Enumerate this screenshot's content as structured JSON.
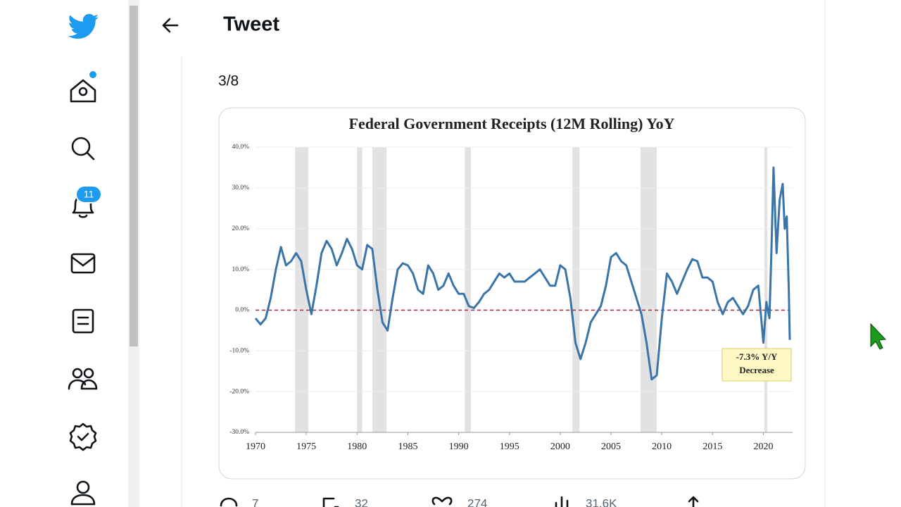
{
  "header": {
    "title": "Tweet"
  },
  "sidebar": {
    "notifications_badge": "11"
  },
  "tweet": {
    "text": "3/8",
    "actions": {
      "replies": "7",
      "retweets": "32",
      "likes": "274",
      "views": "31.6K"
    }
  },
  "chart_data": {
    "type": "line",
    "title": "Federal Government Receipts (12M Rolling) YoY",
    "color": "#3a74a8",
    "x": [
      1970,
      1970.5,
      1971,
      1971.5,
      1972,
      1972.5,
      1973,
      1973.5,
      1974,
      1974.5,
      1975,
      1975.5,
      1976,
      1976.5,
      1977,
      1977.5,
      1978,
      1978.5,
      1979,
      1979.5,
      1980,
      1980.5,
      1981,
      1981.5,
      1982,
      1982.5,
      1983,
      1983.5,
      1984,
      1984.5,
      1985,
      1985.5,
      1986,
      1986.5,
      1987,
      1987.5,
      1988,
      1988.5,
      1989,
      1989.5,
      1990,
      1990.5,
      1991,
      1991.5,
      1992,
      1992.5,
      1993,
      1993.5,
      1994,
      1994.5,
      1995,
      1995.5,
      1996,
      1996.5,
      1997,
      1997.5,
      1998,
      1998.5,
      1999,
      1999.5,
      2000,
      2000.5,
      2001,
      2001.5,
      2002,
      2002.5,
      2003,
      2003.5,
      2004,
      2004.5,
      2005,
      2005.5,
      2006,
      2006.5,
      2007,
      2007.5,
      2008,
      2008.5,
      2009,
      2009.5,
      2010,
      2010.5,
      2011,
      2011.5,
      2012,
      2012.5,
      2013,
      2013.5,
      2014,
      2014.5,
      2015,
      2015.5,
      2016,
      2016.5,
      2017,
      2017.5,
      2018,
      2018.5,
      2019,
      2019.5,
      2020,
      2020.3,
      2020.6,
      2020.8,
      2021,
      2021.3,
      2021.6,
      2021.9,
      2022.1,
      2022.3,
      2022.5,
      2022.6
    ],
    "values": [
      -2,
      -3.5,
      -2,
      3,
      10,
      15.5,
      11,
      12,
      14,
      12,
      5,
      -1,
      6,
      14,
      17,
      15,
      11,
      14,
      17.5,
      15,
      11,
      10,
      16,
      15,
      5,
      -3,
      -5,
      3,
      10,
      11.5,
      11,
      9,
      5,
      4,
      11,
      9,
      5,
      6,
      9,
      6,
      4,
      4,
      1,
      0.5,
      2,
      4,
      5,
      7,
      9,
      8,
      9,
      7,
      7,
      7,
      8,
      9,
      10,
      8,
      6,
      6,
      11,
      10,
      3,
      -8,
      -12,
      -8,
      -3,
      -1,
      1,
      6,
      13,
      14,
      12,
      11,
      7,
      3,
      -1,
      -8,
      -17,
      -16,
      -2,
      9,
      7,
      4,
      7,
      10,
      12.5,
      12,
      8,
      8,
      7,
      2,
      -1,
      2,
      3,
      1,
      -1,
      1,
      5,
      6,
      -8,
      2,
      -2,
      15,
      35,
      14,
      27,
      31,
      20,
      23,
      5,
      -7.3
    ],
    "xlim": [
      1970,
      2022.6
    ],
    "ylim": [
      -30,
      40
    ],
    "xticks": [
      1970,
      1975,
      1980,
      1985,
      1990,
      1995,
      2000,
      2005,
      2010,
      2015,
      2020
    ],
    "yticks": [
      {
        "value": 40,
        "label": "40.0%"
      },
      {
        "value": 30,
        "label": "30.0%"
      },
      {
        "value": 20,
        "label": "20.0%"
      },
      {
        "value": 10,
        "label": "10.0%"
      },
      {
        "value": 0,
        "label": "0.0%"
      },
      {
        "value": -10,
        "label": "-10.0%"
      },
      {
        "value": -20,
        "label": "-20.0%"
      },
      {
        "value": -30,
        "label": "-30.0%"
      }
    ],
    "grid": true,
    "recessions": [
      [
        1973.9,
        1975.2
      ],
      [
        1980,
        1980.5
      ],
      [
        1981.5,
        1982.9
      ],
      [
        1990.6,
        1991.2
      ],
      [
        2001.2,
        2001.9
      ],
      [
        2007.9,
        2009.5
      ],
      [
        2020.1,
        2020.4
      ]
    ],
    "recession_color": "#e2e2e2",
    "reference_line": {
      "value": 0,
      "color": "#a33a48",
      "dashed": true
    },
    "annotation": {
      "lines": [
        "-7.3% Y/Y",
        "Decrease"
      ]
    }
  }
}
